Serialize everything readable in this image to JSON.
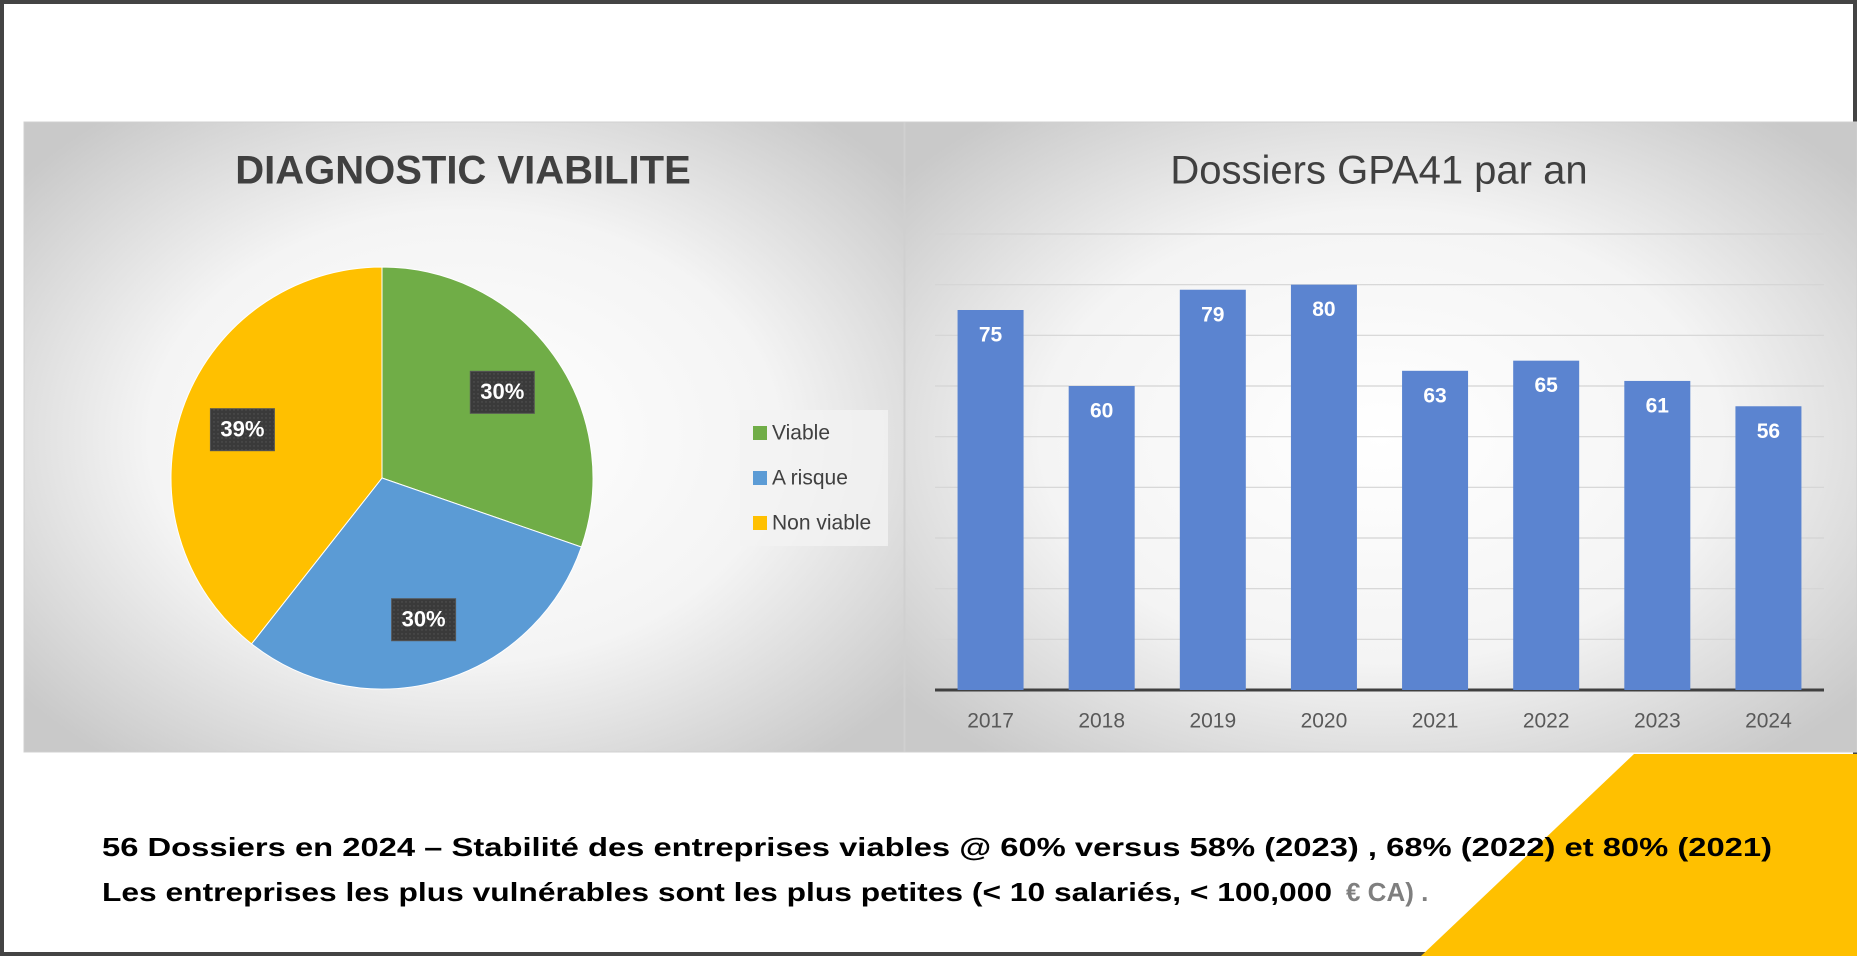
{
  "charts": [
    {
      "type": "pie",
      "title": "DIAGNOSTIC VIABILITE",
      "categories": [
        "Viable",
        "A risque",
        "Non viable"
      ],
      "values": [
        30,
        30,
        39
      ],
      "value_labels": [
        "30%",
        "30%",
        "39%"
      ],
      "colors": [
        "#70ad47",
        "#5b9bd5",
        "#ffc000"
      ],
      "legend": "right"
    },
    {
      "type": "bar",
      "title": "Dossiers GPA41 par an",
      "categories": [
        "2017",
        "2018",
        "2019",
        "2020",
        "2021",
        "2022",
        "2023",
        "2024"
      ],
      "values": [
        75,
        60,
        79,
        80,
        63,
        65,
        61,
        56
      ],
      "color": "#5b84d0",
      "ylim": [
        0,
        90
      ],
      "yticks": [
        0,
        10,
        20,
        30,
        40,
        50,
        60,
        70,
        80,
        90
      ],
      "grid": true
    }
  ],
  "footer": {
    "line1": "56 Dossiers en 2024 – Stabilité des entreprises viables @ 60%  versus 58% (2023) ,  68% (2022) et 80% (2021)",
    "line2": "Les entreprises les plus vulnérables sont les plus petites (< 10 salariés, < 100,000",
    "line2_currency": "€ CA) ."
  }
}
